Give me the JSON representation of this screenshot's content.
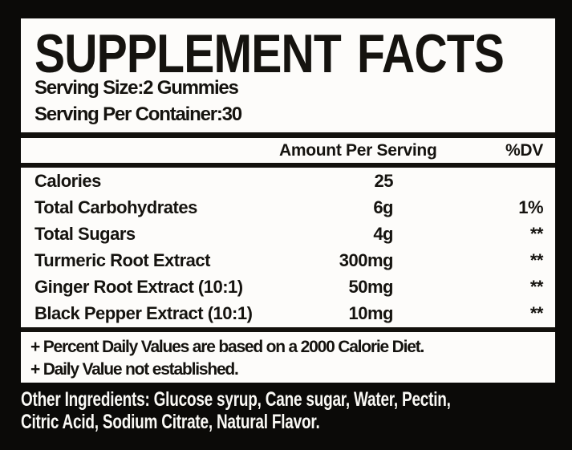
{
  "colors": {
    "background": "#0b0a08",
    "panel": "#fdfcfa",
    "ink": "#15130f",
    "light_text": "#faf9f5"
  },
  "panel": {
    "title": "SUPPLEMENT FACTS",
    "serving_size": "Serving Size:2 Gummies",
    "serving_per_container": "Serving Per Container:30",
    "table": {
      "amount_header": "Amount Per Serving",
      "dv_header": "%DV",
      "rows": [
        {
          "name": "Calories",
          "amount": "25",
          "dv": ""
        },
        {
          "name": "Total Carbohydrates",
          "amount": "6g",
          "dv": "1%"
        },
        {
          "name": "Total Sugars",
          "amount": "4g",
          "dv": "**"
        },
        {
          "name": "Turmeric Root Extract",
          "amount": "300mg",
          "dv": "**"
        },
        {
          "name": "Ginger Root Extract (10:1)",
          "amount": "50mg",
          "dv": "**"
        },
        {
          "name": "Black Pepper Extract (10:1)",
          "amount": "10mg",
          "dv": "**"
        }
      ]
    },
    "footnotes": [
      "+ Percent Daily Values are based on a 2000 Calorie Diet.",
      "+ Daily Value not established."
    ]
  },
  "other_ingredients": {
    "lines": [
      "Other Ingredients: Glucose syrup, Cane sugar, Water, Pectin,",
      "Citric Acid, Sodium Citrate, Natural Flavor."
    ]
  }
}
